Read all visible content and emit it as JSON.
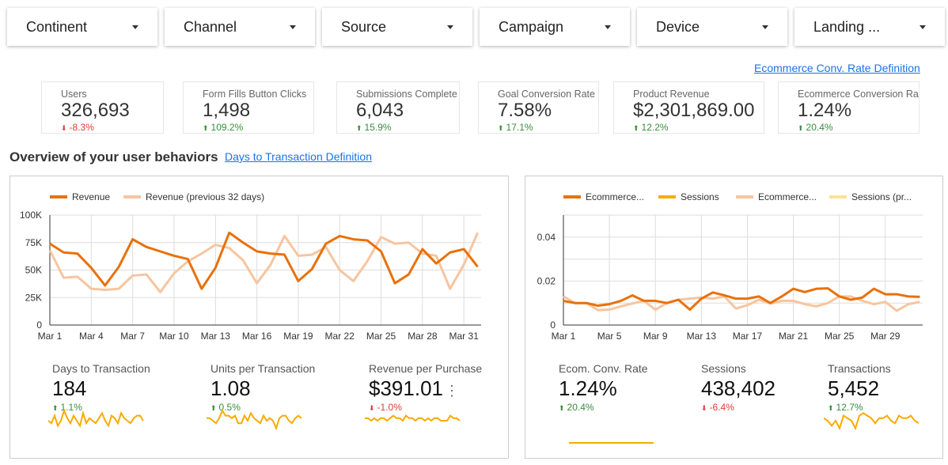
{
  "filters": [
    {
      "label": "Continent"
    },
    {
      "label": "Channel"
    },
    {
      "label": "Source"
    },
    {
      "label": "Campaign"
    },
    {
      "label": "Device"
    },
    {
      "label": "Landing ..."
    }
  ],
  "links": {
    "ecom_def": "Ecommerce Conv. Rate Definition",
    "days_def": "Days to Transaction Definition"
  },
  "kpis": [
    {
      "label": "Users",
      "value": "326,693",
      "delta": "-8.3%",
      "dir": "down"
    },
    {
      "label": "Form Fills Button Clicks",
      "value": "1,498",
      "delta": "109.2%",
      "dir": "up"
    },
    {
      "label": "Submissions Complete",
      "value": "6,043",
      "delta": "15.9%",
      "dir": "up"
    },
    {
      "label": "Goal Conversion Rate",
      "value": "7.58%",
      "delta": "17.1%",
      "dir": "up"
    },
    {
      "label": "Product Revenue",
      "value": "$2,301,869.00",
      "delta": "12.2%",
      "dir": "up"
    },
    {
      "label": "Ecommerce Conversion Rate",
      "value": "1.24%",
      "delta": "20.4%",
      "dir": "up"
    }
  ],
  "section_title": "Overview of your user behaviors",
  "colors": {
    "current": "#e8710a",
    "previous": "#f7c59f",
    "sessions": "#f9ab00",
    "sessions_prev": "#fde293",
    "spark": "#f9ab00",
    "up": "#388e3c",
    "down": "#e53935"
  },
  "chart_data": [
    {
      "type": "line",
      "legend": [
        "Revenue",
        "Revenue (previous 32 days)"
      ],
      "legend_position": "top-left",
      "ylim": [
        0,
        100000
      ],
      "yticks": [
        "0",
        "25K",
        "50K",
        "75K",
        "100K"
      ],
      "xticks": [
        "Mar 1",
        "Mar 4",
        "Mar 7",
        "Mar 10",
        "Mar 13",
        "Mar 16",
        "Mar 19",
        "Mar 22",
        "Mar 25",
        "Mar 28",
        "Mar 31"
      ],
      "x_days": "Mar 1 – Apr 1",
      "series": [
        {
          "name": "Revenue",
          "values": [
            74000,
            66000,
            65000,
            52000,
            36000,
            53000,
            78000,
            71000,
            67000,
            63000,
            60000,
            33000,
            52000,
            84000,
            75000,
            67000,
            65000,
            64000,
            40000,
            51000,
            74000,
            81000,
            78000,
            77000,
            67000,
            38000,
            46000,
            69000,
            56000,
            66000,
            69000,
            53000
          ]
        },
        {
          "name": "Revenue (previous 32 days)",
          "values": [
            68000,
            43000,
            44000,
            33000,
            32000,
            33000,
            45000,
            46000,
            30000,
            47000,
            58000,
            65000,
            73000,
            70000,
            59000,
            38000,
            55000,
            81000,
            63000,
            64000,
            71000,
            50000,
            40000,
            58000,
            80000,
            74000,
            75000,
            65000,
            63000,
            33000,
            55000,
            84000
          ]
        }
      ]
    },
    {
      "type": "line",
      "legend": [
        "Ecommerce...",
        "Sessions",
        "Ecommerce...",
        "Sessions (pr..."
      ],
      "legend_position": "top-left",
      "ylim": [
        0,
        0.05
      ],
      "yticks": [
        "0",
        "0.02",
        "0.04"
      ],
      "xticks": [
        "Mar 1",
        "Mar 5",
        "Mar 9",
        "Mar 13",
        "Mar 17",
        "Mar 21",
        "Mar 25",
        "Mar 29"
      ],
      "series": [
        {
          "name": "Ecommerce...",
          "values": [
            0.011,
            0.01,
            0.01,
            0.0088,
            0.0095,
            0.011,
            0.0135,
            0.011,
            0.011,
            0.01,
            0.0115,
            0.007,
            0.012,
            0.0148,
            0.0135,
            0.012,
            0.012,
            0.013,
            0.01,
            0.013,
            0.0165,
            0.015,
            0.0165,
            0.0167,
            0.013,
            0.0115,
            0.0125,
            0.0165,
            0.014,
            0.014,
            0.013,
            0.0128
          ]
        },
        {
          "name": "Ecommerce...",
          "values": [
            0.013,
            0.01,
            0.01,
            0.0068,
            0.007,
            0.0085,
            0.0098,
            0.011,
            0.007,
            0.01,
            0.0115,
            0.012,
            0.0125,
            0.012,
            0.013,
            0.0075,
            0.009,
            0.0115,
            0.0098,
            0.011,
            0.011,
            0.0095,
            0.0085,
            0.01,
            0.013,
            0.013,
            0.011,
            0.0095,
            0.0105,
            0.0065,
            0.0095,
            0.0105
          ]
        }
      ]
    }
  ],
  "metrics_left": [
    {
      "label": "Days to Transaction",
      "value": "184",
      "delta": "1.1%",
      "dir": "up",
      "spark": [
        5,
        4,
        7,
        3,
        5,
        9,
        6,
        4,
        7,
        5,
        3,
        8,
        4,
        6,
        5,
        4,
        6,
        8,
        5,
        3,
        7,
        6,
        4,
        8,
        6,
        5,
        4,
        6,
        7,
        7,
        5
      ]
    },
    {
      "label": "Units per Transaction",
      "value": "1.08",
      "delta": "0.5%",
      "dir": "up",
      "spark": [
        6,
        6,
        5,
        4,
        6,
        9,
        7,
        7,
        6,
        7,
        4,
        4,
        7,
        5,
        8,
        6,
        5,
        4,
        7,
        5,
        6,
        5,
        2,
        6,
        7,
        7,
        5,
        4,
        6,
        7,
        6
      ]
    },
    {
      "label": "Revenue per Purchase",
      "value": "$391.01",
      "delta": "-1.0%",
      "dir": "down",
      "spark": [
        6,
        6,
        5,
        6,
        5,
        6,
        6,
        5,
        6,
        7,
        6,
        6,
        5,
        7,
        6,
        6,
        5,
        6,
        6,
        5,
        6,
        5,
        6,
        6,
        5,
        5,
        5,
        7,
        6,
        6,
        5
      ]
    }
  ],
  "metrics_right": [
    {
      "label": "Ecom. Conv. Rate",
      "value": "1.24%",
      "delta": "20.4%",
      "dir": "up",
      "spark": [
        5,
        5,
        5,
        5,
        5,
        5,
        5,
        5,
        5,
        5
      ]
    },
    {
      "label": "Sessions",
      "value": "438,402",
      "delta": "-6.4%",
      "dir": "down",
      "spark": []
    },
    {
      "label": "Transactions",
      "value": "5,452",
      "delta": "12.7%",
      "dir": "up",
      "spark": [
        6,
        5,
        3,
        5,
        2,
        7,
        6,
        5,
        2,
        7,
        8,
        7,
        6,
        4,
        6,
        6,
        7,
        5,
        4,
        7,
        6,
        6,
        7,
        5,
        4
      ]
    }
  ]
}
